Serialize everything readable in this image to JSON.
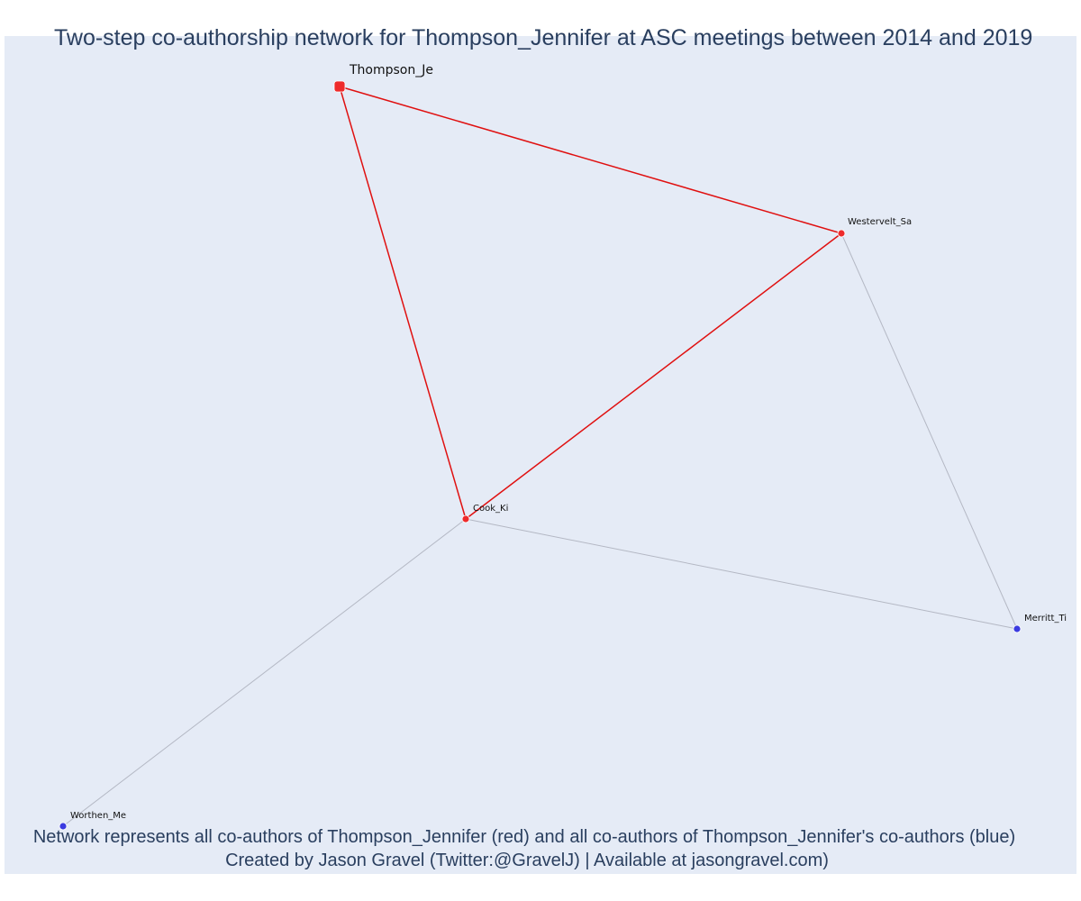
{
  "title": "Two-step co-authorship network for Thompson_Jennifer at ASC meetings between 2014 and 2019",
  "caption": {
    "line1": "Network represents all co-authors of Thompson_Jennifer (red) and all co-authors of Thompson_Jennifer's co-authors (blue)",
    "line2": "Created by Jason Gravel (Twitter:@GravelJ) | Available at jasongravel.com)"
  },
  "colors": {
    "plot_background": "#e5ebf6",
    "text": "#2a3f5f",
    "coauthor": "#ee2b2b",
    "second_step": "#3b3be0",
    "primary_edge": "#e01010",
    "secondary_edge": "#b4b8c4"
  },
  "network": {
    "nodes": [
      {
        "id": "thompson",
        "label": "Thompson_Je",
        "group": "focal"
      },
      {
        "id": "westervelt",
        "label": "Westervelt_Sa",
        "group": "coauthor"
      },
      {
        "id": "cook",
        "label": "Cook_Ki",
        "group": "coauthor"
      },
      {
        "id": "merritt",
        "label": "Merritt_Ti",
        "group": "second_step"
      },
      {
        "id": "worthen",
        "label": "Worthen_Me",
        "group": "second_step"
      }
    ],
    "edges": [
      {
        "source": "thompson",
        "target": "westervelt",
        "type": "primary"
      },
      {
        "source": "thompson",
        "target": "cook",
        "type": "primary"
      },
      {
        "source": "westervelt",
        "target": "cook",
        "type": "primary"
      },
      {
        "source": "westervelt",
        "target": "merritt",
        "type": "secondary"
      },
      {
        "source": "cook",
        "target": "merritt",
        "type": "secondary"
      },
      {
        "source": "cook",
        "target": "worthen",
        "type": "secondary"
      }
    ]
  }
}
